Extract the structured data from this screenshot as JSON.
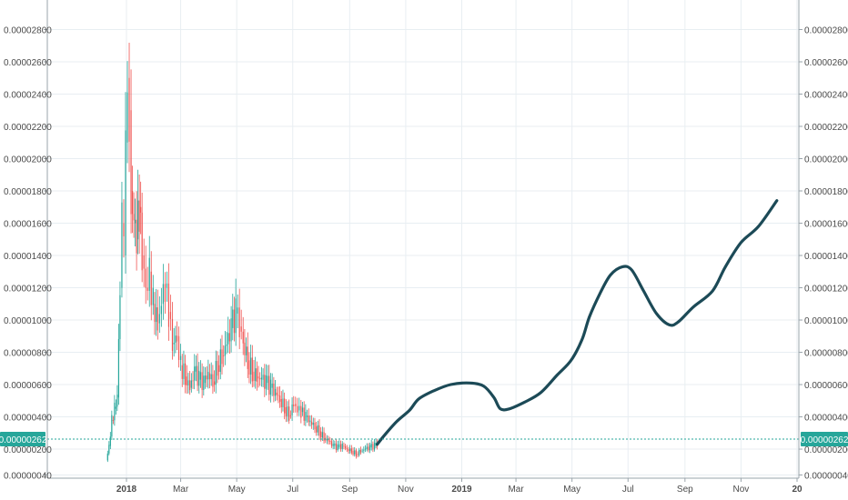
{
  "chart_data": {
    "type": "line",
    "title": "",
    "ylim": [
      2e-07,
      2.983e-05
    ],
    "y_ticks": [
      "0.00000040",
      "0.00000200",
      "0.00000400",
      "0.00000600",
      "0.00000800",
      "0.00001000",
      "0.00001200",
      "0.00001400",
      "0.00001600",
      "0.00001800",
      "0.00002000",
      "0.00002200",
      "0.00002400",
      "0.00002600",
      "0.00002800"
    ],
    "x_ticks": [
      {
        "label": "2018",
        "date": "2018-01-01",
        "bold": true
      },
      {
        "label": "Mar",
        "date": "2018-03-01",
        "bold": false
      },
      {
        "label": "May",
        "date": "2018-05-01",
        "bold": false
      },
      {
        "label": "Jul",
        "date": "2018-07-01",
        "bold": false
      },
      {
        "label": "Sep",
        "date": "2018-09-01",
        "bold": false
      },
      {
        "label": "Nov",
        "date": "2018-11-01",
        "bold": false
      },
      {
        "label": "2019",
        "date": "2019-01-01",
        "bold": true
      },
      {
        "label": "Mar",
        "date": "2019-03-01",
        "bold": false
      },
      {
        "label": "May",
        "date": "2019-05-01",
        "bold": false
      },
      {
        "label": "Jul",
        "date": "2019-07-01",
        "bold": false
      },
      {
        "label": "Sep",
        "date": "2019-09-01",
        "bold": false
      },
      {
        "label": "Nov",
        "date": "2019-11-01",
        "bold": false
      },
      {
        "label": "20",
        "date": "2020-01-01",
        "bold": true
      }
    ],
    "current_price": {
      "value": 2.62e-06,
      "label": "0.00000262",
      "color": "#26a69a"
    },
    "colors": {
      "up": "#26a69a",
      "down": "#ef5350",
      "projection": "#1c4a57",
      "grid": "#e8eef2"
    },
    "series": [
      {
        "kind": "candles",
        "points": [
          {
            "x": "2017-12-10",
            "y": 1.3e-06
          },
          {
            "x": "2017-12-13",
            "y": 2.2e-06
          },
          {
            "x": "2017-12-16",
            "y": 3.8e-06
          },
          {
            "x": "2017-12-19",
            "y": 4.5e-06
          },
          {
            "x": "2017-12-22",
            "y": 5.2e-06
          },
          {
            "x": "2017-12-25",
            "y": 1.2e-05
          },
          {
            "x": "2017-12-27",
            "y": 1.6e-05
          },
          {
            "x": "2017-12-29",
            "y": 1.4e-05
          },
          {
            "x": "2017-12-31",
            "y": 2.1e-05
          },
          {
            "x": "2018-01-02",
            "y": 2.5e-05
          },
          {
            "x": "2018-01-04",
            "y": 2.3e-05
          },
          {
            "x": "2018-01-06",
            "y": 1.8e-05
          },
          {
            "x": "2018-01-09",
            "y": 1.6e-05
          },
          {
            "x": "2018-01-12",
            "y": 1.5e-05
          },
          {
            "x": "2018-01-15",
            "y": 1.7e-05
          },
          {
            "x": "2018-01-18",
            "y": 1.4e-05
          },
          {
            "x": "2018-01-22",
            "y": 1.2e-05
          },
          {
            "x": "2018-01-26",
            "y": 1.3e-05
          },
          {
            "x": "2018-01-30",
            "y": 1.1e-05
          },
          {
            "x": "2018-02-04",
            "y": 9.8e-06
          },
          {
            "x": "2018-02-08",
            "y": 1.1e-05
          },
          {
            "x": "2018-02-12",
            "y": 1.2e-05
          },
          {
            "x": "2018-02-16",
            "y": 1.05e-05
          },
          {
            "x": "2018-02-20",
            "y": 8.5e-06
          },
          {
            "x": "2018-02-25",
            "y": 9e-06
          },
          {
            "x": "2018-03-01",
            "y": 7.2e-06
          },
          {
            "x": "2018-03-06",
            "y": 6.5e-06
          },
          {
            "x": "2018-03-11",
            "y": 5.8e-06
          },
          {
            "x": "2018-03-16",
            "y": 6.8e-06
          },
          {
            "x": "2018-03-21",
            "y": 6.3e-06
          },
          {
            "x": "2018-03-26",
            "y": 6.1e-06
          },
          {
            "x": "2018-03-31",
            "y": 6.7e-06
          },
          {
            "x": "2018-04-05",
            "y": 6.2e-06
          },
          {
            "x": "2018-04-10",
            "y": 7.2e-06
          },
          {
            "x": "2018-04-15",
            "y": 7.8e-06
          },
          {
            "x": "2018-04-20",
            "y": 8.5e-06
          },
          {
            "x": "2018-04-25",
            "y": 9.5e-06
          },
          {
            "x": "2018-04-30",
            "y": 1.04e-05
          },
          {
            "x": "2018-05-04",
            "y": 9.6e-06
          },
          {
            "x": "2018-05-08",
            "y": 8.6e-06
          },
          {
            "x": "2018-05-13",
            "y": 7.5e-06
          },
          {
            "x": "2018-05-18",
            "y": 6.8e-06
          },
          {
            "x": "2018-05-23",
            "y": 6.5e-06
          },
          {
            "x": "2018-05-28",
            "y": 6.3e-06
          },
          {
            "x": "2018-06-02",
            "y": 6.1e-06
          },
          {
            "x": "2018-06-07",
            "y": 5.8e-06
          },
          {
            "x": "2018-06-12",
            "y": 5.5e-06
          },
          {
            "x": "2018-06-17",
            "y": 5.1e-06
          },
          {
            "x": "2018-06-22",
            "y": 4.6e-06
          },
          {
            "x": "2018-06-27",
            "y": 4.1e-06
          },
          {
            "x": "2018-07-02",
            "y": 4.8e-06
          },
          {
            "x": "2018-07-06",
            "y": 4.4e-06
          },
          {
            "x": "2018-07-10",
            "y": 4.3e-06
          },
          {
            "x": "2018-07-15",
            "y": 4e-06
          },
          {
            "x": "2018-07-20",
            "y": 3.7e-06
          },
          {
            "x": "2018-07-25",
            "y": 3.4e-06
          },
          {
            "x": "2018-07-30",
            "y": 3.1e-06
          },
          {
            "x": "2018-08-04",
            "y": 2.7e-06
          },
          {
            "x": "2018-08-09",
            "y": 2.5e-06
          },
          {
            "x": "2018-08-14",
            "y": 2.2e-06
          },
          {
            "x": "2018-08-19",
            "y": 2.1e-06
          },
          {
            "x": "2018-08-24",
            "y": 2.2e-06
          },
          {
            "x": "2018-08-29",
            "y": 2e-06
          },
          {
            "x": "2018-09-03",
            "y": 1.9e-06
          },
          {
            "x": "2018-09-08",
            "y": 1.7e-06
          },
          {
            "x": "2018-09-13",
            "y": 1.9e-06
          },
          {
            "x": "2018-09-18",
            "y": 2e-06
          },
          {
            "x": "2018-09-23",
            "y": 2.1e-06
          },
          {
            "x": "2018-09-28",
            "y": 2.2e-06
          },
          {
            "x": "2018-10-01",
            "y": 2.3e-06
          }
        ]
      },
      {
        "kind": "projection",
        "points": [
          {
            "x": "2018-10-01",
            "y": 2.3e-06
          },
          {
            "x": "2018-10-08",
            "y": 2.8e-06
          },
          {
            "x": "2018-10-22",
            "y": 3.7e-06
          },
          {
            "x": "2018-11-05",
            "y": 4.4e-06
          },
          {
            "x": "2018-11-15",
            "y": 5.1e-06
          },
          {
            "x": "2018-12-01",
            "y": 5.6e-06
          },
          {
            "x": "2018-12-20",
            "y": 6e-06
          },
          {
            "x": "2019-01-10",
            "y": 6.1e-06
          },
          {
            "x": "2019-01-25",
            "y": 5.9e-06
          },
          {
            "x": "2019-02-05",
            "y": 5.2e-06
          },
          {
            "x": "2019-02-12",
            "y": 4.5e-06
          },
          {
            "x": "2019-02-22",
            "y": 4.5e-06
          },
          {
            "x": "2019-03-10",
            "y": 4.9e-06
          },
          {
            "x": "2019-03-28",
            "y": 5.5e-06
          },
          {
            "x": "2019-04-15",
            "y": 6.6e-06
          },
          {
            "x": "2019-04-30",
            "y": 7.5e-06
          },
          {
            "x": "2019-05-12",
            "y": 8.8e-06
          },
          {
            "x": "2019-05-20",
            "y": 1.02e-05
          },
          {
            "x": "2019-06-01",
            "y": 1.17e-05
          },
          {
            "x": "2019-06-12",
            "y": 1.28e-05
          },
          {
            "x": "2019-06-25",
            "y": 1.33e-05
          },
          {
            "x": "2019-07-05",
            "y": 1.31e-05
          },
          {
            "x": "2019-07-18",
            "y": 1.18e-05
          },
          {
            "x": "2019-08-01",
            "y": 1.04e-05
          },
          {
            "x": "2019-08-15",
            "y": 9.7e-06
          },
          {
            "x": "2019-08-25",
            "y": 9.9e-06
          },
          {
            "x": "2019-09-10",
            "y": 1.08e-05
          },
          {
            "x": "2019-10-01",
            "y": 1.18e-05
          },
          {
            "x": "2019-10-15",
            "y": 1.33e-05
          },
          {
            "x": "2019-11-01",
            "y": 1.48e-05
          },
          {
            "x": "2019-11-20",
            "y": 1.58e-05
          },
          {
            "x": "2019-12-10",
            "y": 1.74e-05
          }
        ]
      }
    ]
  }
}
